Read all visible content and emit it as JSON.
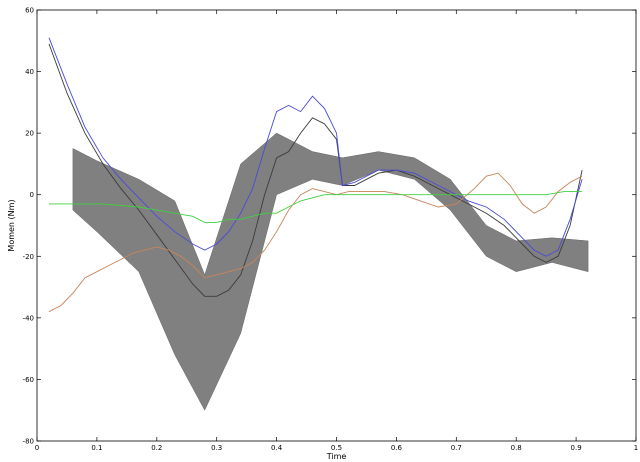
{
  "chart_data": {
    "type": "line",
    "title": "",
    "xlabel": "Time",
    "ylabel": "Momen (Nm)",
    "xlim": [
      0,
      1
    ],
    "ylim": [
      -80,
      60
    ],
    "xticks": [
      0,
      0.1,
      0.2,
      0.3,
      0.4,
      0.5,
      0.6,
      0.7,
      0.8,
      0.9,
      1
    ],
    "xtick_labels": [
      "0",
      "0.1",
      "0.2",
      "0.3",
      "0.4",
      "0.5",
      "0.6",
      "0.7",
      "0.8",
      "0.9",
      "1"
    ],
    "yticks": [
      -80,
      -60,
      -40,
      -20,
      0,
      20,
      40,
      60
    ],
    "ytick_labels": [
      "-80",
      "-60",
      "-40",
      "-20",
      "0",
      "20",
      "40",
      "60"
    ],
    "grid": false,
    "legend": "none",
    "band": {
      "color": "#808080",
      "x": [
        0.06,
        0.1,
        0.17,
        0.23,
        0.28,
        0.34,
        0.4,
        0.46,
        0.51,
        0.57,
        0.63,
        0.69,
        0.75,
        0.8,
        0.86,
        0.92
      ],
      "upper": [
        15,
        11,
        5,
        -2,
        -26,
        10,
        20,
        14,
        12,
        14,
        12,
        5,
        -10,
        -15,
        -14,
        -15
      ],
      "lower": [
        -5,
        -12,
        -25,
        -52,
        -70,
        -45,
        0,
        5,
        3,
        8,
        5,
        -5,
        -20,
        -25,
        -22,
        -25
      ]
    },
    "series": [
      {
        "color": "#3a3a3a",
        "x": [
          0.02,
          0.05,
          0.08,
          0.11,
          0.14,
          0.17,
          0.2,
          0.23,
          0.26,
          0.28,
          0.3,
          0.32,
          0.34,
          0.36,
          0.38,
          0.4,
          0.42,
          0.44,
          0.46,
          0.48,
          0.5,
          0.51,
          0.53,
          0.55,
          0.57,
          0.6,
          0.63,
          0.66,
          0.69,
          0.72,
          0.75,
          0.78,
          0.81,
          0.83,
          0.85,
          0.87,
          0.89,
          0.91
        ],
        "y": [
          49,
          33,
          20,
          10,
          2,
          -5,
          -13,
          -21,
          -29,
          -33,
          -33,
          -31,
          -26,
          -15,
          0,
          12,
          14,
          20,
          25,
          23,
          18,
          3,
          3,
          5,
          7,
          8,
          6,
          3,
          0,
          -3,
          -6,
          -10,
          -16,
          -20,
          -22,
          -20,
          -10,
          8
        ]
      },
      {
        "color": "#4a4ad8",
        "x": [
          0.02,
          0.05,
          0.08,
          0.11,
          0.14,
          0.17,
          0.2,
          0.23,
          0.26,
          0.28,
          0.3,
          0.32,
          0.34,
          0.36,
          0.38,
          0.4,
          0.42,
          0.44,
          0.46,
          0.48,
          0.5,
          0.51,
          0.53,
          0.55,
          0.57,
          0.6,
          0.63,
          0.66,
          0.69,
          0.72,
          0.75,
          0.78,
          0.81,
          0.83,
          0.85,
          0.87,
          0.89,
          0.91
        ],
        "y": [
          51,
          36,
          22,
          12,
          5,
          -1,
          -7,
          -12,
          -16,
          -18,
          -16,
          -12,
          -6,
          2,
          15,
          27,
          29,
          27,
          32,
          28,
          20,
          3,
          4,
          6,
          8,
          8,
          7,
          4,
          1,
          -2,
          -4,
          -8,
          -14,
          -18,
          -20,
          -18,
          -8,
          5
        ]
      },
      {
        "color": "#c8845a",
        "x": [
          0.02,
          0.04,
          0.06,
          0.08,
          0.1,
          0.12,
          0.14,
          0.16,
          0.18,
          0.2,
          0.22,
          0.24,
          0.26,
          0.28,
          0.3,
          0.32,
          0.34,
          0.36,
          0.38,
          0.4,
          0.42,
          0.44,
          0.46,
          0.48,
          0.5,
          0.52,
          0.55,
          0.58,
          0.61,
          0.64,
          0.67,
          0.7,
          0.73,
          0.75,
          0.77,
          0.79,
          0.81,
          0.83,
          0.85,
          0.87,
          0.89,
          0.91
        ],
        "y": [
          -38,
          -36,
          -32,
          -27,
          -25,
          -23,
          -21,
          -19,
          -18,
          -17,
          -18,
          -20,
          -23,
          -27,
          -26,
          -25,
          -24,
          -22,
          -18,
          -12,
          -5,
          0,
          2,
          1,
          0,
          1,
          1,
          1,
          0,
          -2,
          -4,
          -3,
          2,
          6,
          7,
          3,
          -3,
          -6,
          -4,
          1,
          4,
          6
        ]
      },
      {
        "color": "#40d040",
        "x": [
          0.02,
          0.05,
          0.08,
          0.11,
          0.14,
          0.17,
          0.2,
          0.23,
          0.26,
          0.28,
          0.3,
          0.32,
          0.34,
          0.36,
          0.38,
          0.4,
          0.42,
          0.44,
          0.46,
          0.48,
          0.5,
          0.52,
          0.55,
          0.58,
          0.61,
          0.64,
          0.67,
          0.7,
          0.73,
          0.76,
          0.79,
          0.82,
          0.85,
          0.88,
          0.91
        ],
        "y": [
          -3,
          -3,
          -3,
          -3,
          -3.5,
          -4,
          -5,
          -6,
          -7,
          -9,
          -9,
          -8,
          -8,
          -7,
          -6,
          -6,
          -4,
          -2,
          -1,
          0,
          0,
          0,
          0,
          0,
          0,
          0,
          0,
          0,
          0,
          0,
          0,
          0,
          0,
          1,
          1
        ]
      }
    ]
  }
}
